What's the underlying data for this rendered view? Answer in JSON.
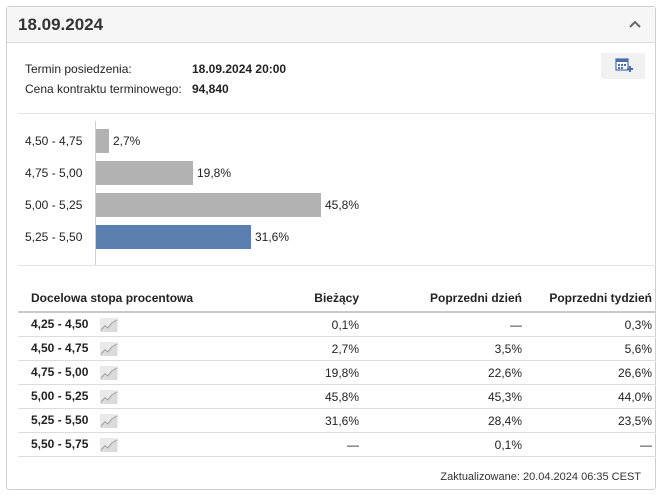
{
  "panel": {
    "title": "18.09.2024",
    "collapse_icon": "chevron-up-icon",
    "calendar_icon": "calendar-add-icon"
  },
  "info": {
    "meeting_label": "Termin posiedzenia:",
    "meeting_value": "18.09.2024 20:00",
    "price_label": "Cena kontraktu terminowego:",
    "price_value": "94,840"
  },
  "chart_data": {
    "type": "bar",
    "orientation": "horizontal",
    "categories": [
      "4,50 - 4,75",
      "4,75 - 5,00",
      "5,00 - 5,25",
      "5,25 - 5,50"
    ],
    "values": [
      2.7,
      19.8,
      45.8,
      31.6
    ],
    "value_labels": [
      "2,7%",
      "19,8%",
      "45,8%",
      "31,6%"
    ],
    "highlighted_index": 3,
    "colors": {
      "default": "#b2b2b2",
      "highlight": "#5b7faf"
    }
  },
  "table": {
    "headers": [
      "Docelowa stopa procentowa",
      "Bieżący",
      "Poprzedni dzień",
      "Poprzedni tydzień"
    ],
    "rows": [
      {
        "range": "4,25 - 4,50",
        "current": "0,1%",
        "prev_day": "—",
        "prev_week": "0,3%"
      },
      {
        "range": "4,50 - 4,75",
        "current": "2,7%",
        "prev_day": "3,5%",
        "prev_week": "5,6%"
      },
      {
        "range": "4,75 - 5,00",
        "current": "19,8%",
        "prev_day": "22,6%",
        "prev_week": "26,6%"
      },
      {
        "range": "5,00 - 5,25",
        "current": "45,8%",
        "prev_day": "45,3%",
        "prev_week": "44,0%"
      },
      {
        "range": "5,25 - 5,50",
        "current": "31,6%",
        "prev_day": "28,4%",
        "prev_week": "23,5%"
      },
      {
        "range": "5,50 - 5,75",
        "current": "—",
        "prev_day": "0,1%",
        "prev_week": "—"
      }
    ],
    "sparkline_icon": "trend-chart-icon"
  },
  "footer": {
    "updated": "Zaktualizowane: 20.04.2024 06:35 CEST"
  }
}
